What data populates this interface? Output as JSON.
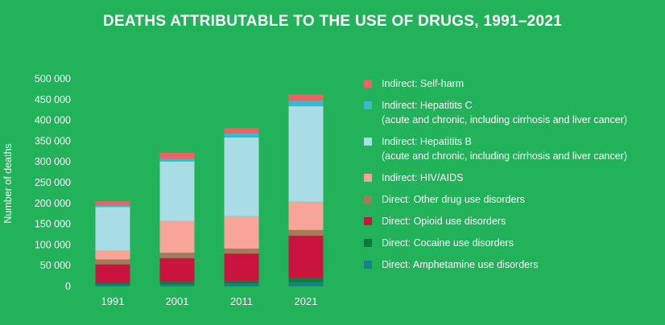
{
  "chart_data": {
    "type": "bar",
    "stacked": true,
    "title": "DEATHS ATTRIBUTABLE TO THE USE OF DRUGS, 1991–2021",
    "xlabel": "",
    "ylabel": "Number of deaths",
    "ylim": [
      0,
      500000
    ],
    "yticks": [
      0,
      50000,
      100000,
      150000,
      200000,
      250000,
      300000,
      350000,
      400000,
      450000,
      500000
    ],
    "ytick_labels": [
      "0",
      "50 000",
      "100 000",
      "150 000",
      "200 000",
      "250 000",
      "300 000",
      "350 000",
      "400 000",
      "450 000",
      "500 000"
    ],
    "categories": [
      "1991",
      "2001",
      "2011",
      "2021"
    ],
    "legend_position": "right",
    "series": [
      {
        "name": "Direct: Amphetamine use disorders",
        "color": "#1a7f8c",
        "values": [
          5000,
          6000,
          7000,
          10000
        ]
      },
      {
        "name": "Direct: Cocaine use disorders",
        "color": "#0c7a3e",
        "values": [
          4000,
          5000,
          6000,
          11000
        ]
      },
      {
        "name": "Direct: Opioid use disorders",
        "color": "#c8143f",
        "values": [
          44000,
          57000,
          66000,
          101000
        ]
      },
      {
        "name": "Direct: Other drug use disorders",
        "color": "#a67a5a",
        "values": [
          12000,
          13000,
          12000,
          14000
        ]
      },
      {
        "name": "Indirect: HIV/AIDS",
        "color": "#f7a598",
        "values": [
          21000,
          77000,
          78000,
          68000
        ]
      },
      {
        "name": "Indirect: Hepatitits B",
        "sub": "(acute and chronic, including cirrhosis and liver cancer)",
        "color": "#a8dde6",
        "values": [
          105000,
          143000,
          190000,
          230000
        ]
      },
      {
        "name": "Indirect: Hepatitits C",
        "sub": "(acute and chronic, including cirrhosis and liver cancer)",
        "color": "#38b9cf",
        "values": [
          5000,
          7000,
          10000,
          14000
        ]
      },
      {
        "name": "Indirect: Self-harm",
        "color": "#ee6264",
        "values": [
          9000,
          14000,
          12000,
          14000
        ]
      }
    ]
  },
  "legend_order": [
    7,
    6,
    5,
    4,
    3,
    2,
    1,
    0
  ]
}
